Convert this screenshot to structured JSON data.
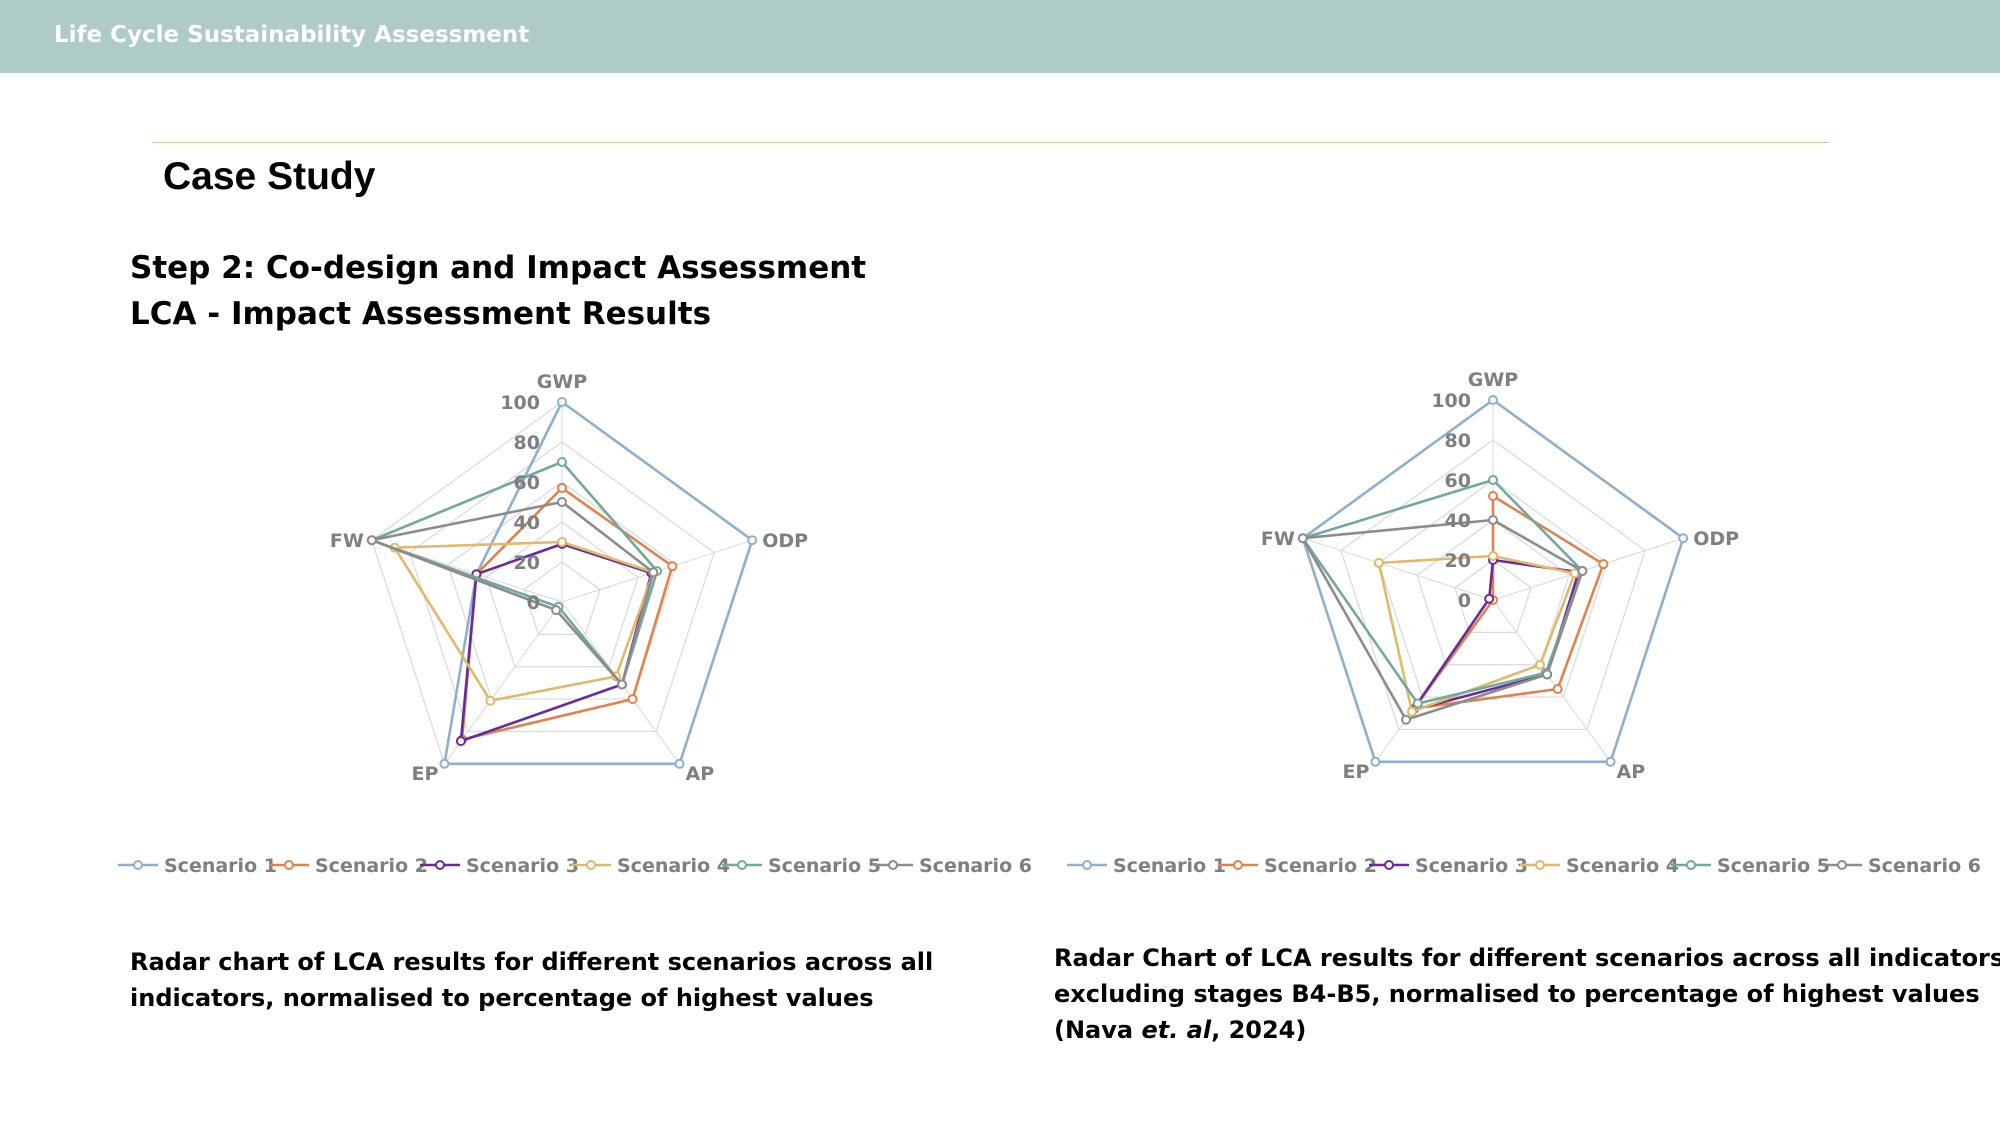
{
  "header": {
    "banner_title": "Life Cycle Sustainability Assessment",
    "page_title": "Case Study",
    "step_title": "Step 2: Co-design and Impact Assessment",
    "step_subtitle": "LCA - Impact Assessment Results"
  },
  "colors": {
    "banner": "#aecbc6",
    "rule": "#e6c79c",
    "grid": "#d9d9d9",
    "label": "#7f7f7f"
  },
  "captions": {
    "left": {
      "line1": "Radar chart of LCA results for different scenarios across all",
      "line2": "indicators, normalised to percentage of highest values"
    },
    "right": {
      "line1": "Radar Chart of LCA results for different scenarios across all indicators",
      "line2": "excluding stages B4-B5, normalised to percentage of highest values",
      "line3_pre": "(Nava ",
      "line3_em": "et. al",
      "line3_post": ", 2024)"
    }
  },
  "chart_data": [
    {
      "type": "radar",
      "axes": [
        "GWP",
        "ODP",
        "AP",
        "EP",
        "FW"
      ],
      "range": [
        0,
        100
      ],
      "ticks": [
        "0",
        "20",
        "40",
        "60",
        "80",
        "100"
      ],
      "legend_position": "bottom",
      "series": [
        {
          "name": "Scenario 1",
          "color": "#8fb0cc",
          "values": [
            100,
            100,
            100,
            100,
            45
          ]
        },
        {
          "name": "Scenario 2",
          "color": "#e0824d",
          "values": [
            57,
            58,
            60,
            85,
            45
          ]
        },
        {
          "name": "Scenario 3",
          "color": "#6a2b9a",
          "values": [
            29,
            47,
            51,
            86,
            45
          ]
        },
        {
          "name": "Scenario 4",
          "color": "#e0b96a",
          "values": [
            30,
            48,
            46,
            61,
            88
          ]
        },
        {
          "name": "Scenario 5",
          "color": "#72a99c",
          "values": [
            70,
            50,
            51,
            3,
            100
          ]
        },
        {
          "name": "Scenario 6",
          "color": "#8c8c8c",
          "values": [
            50,
            48,
            51,
            5,
            100
          ]
        }
      ]
    },
    {
      "type": "radar",
      "axes": [
        "GWP",
        "ODP",
        "AP",
        "EP",
        "FW"
      ],
      "range": [
        0,
        100
      ],
      "ticks": [
        "0",
        "20",
        "40",
        "60",
        "80",
        "100"
      ],
      "legend_position": "bottom",
      "series": [
        {
          "name": "Scenario 1",
          "color": "#8fb0cc",
          "values": [
            100,
            100,
            100,
            100,
            100
          ]
        },
        {
          "name": "Scenario 2",
          "color": "#e0824d",
          "values": [
            52,
            58,
            55,
            67,
            0
          ]
        },
        {
          "name": "Scenario 3",
          "color": "#6a2b9a",
          "values": [
            20,
            45,
            46,
            68,
            2
          ]
        },
        {
          "name": "Scenario 4",
          "color": "#e0b96a",
          "values": [
            22,
            43,
            40,
            69,
            60
          ]
        },
        {
          "name": "Scenario 5",
          "color": "#72a99c",
          "values": [
            60,
            47,
            45,
            64,
            100
          ]
        },
        {
          "name": "Scenario 6",
          "color": "#8c8c8c",
          "values": [
            40,
            47,
            46,
            74,
            100
          ]
        }
      ]
    }
  ]
}
